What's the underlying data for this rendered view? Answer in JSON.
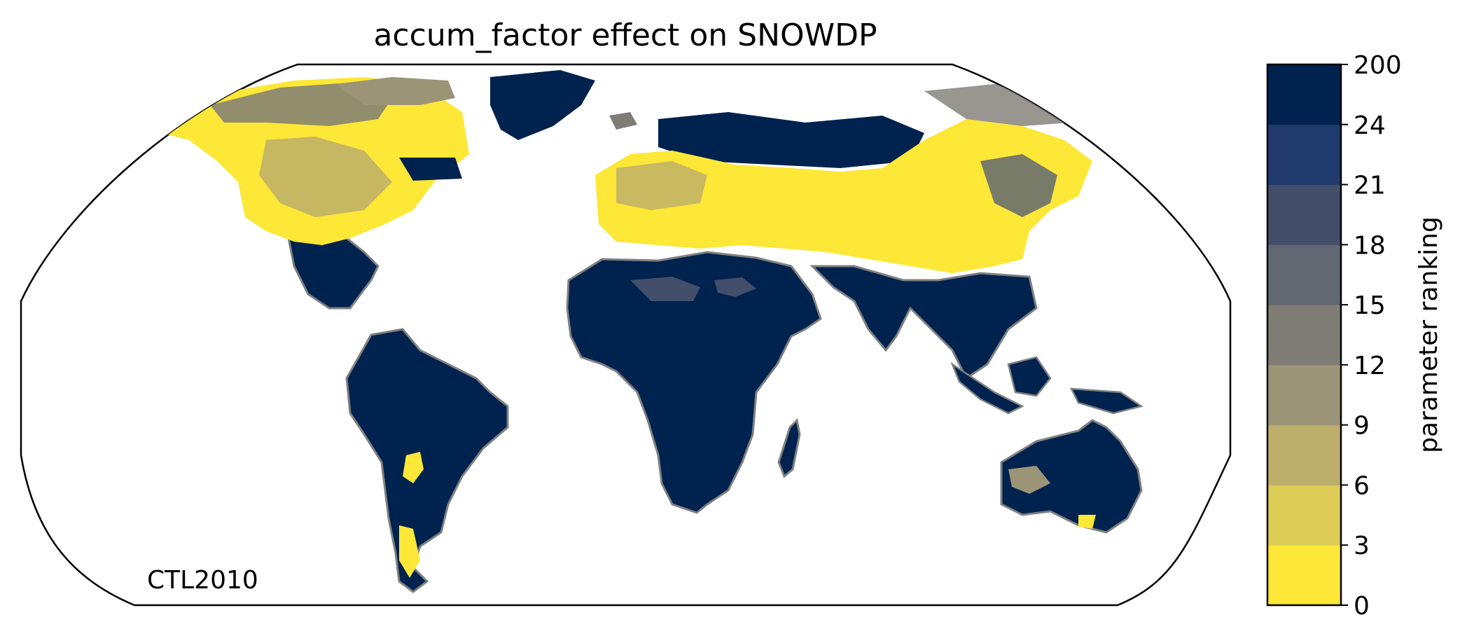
{
  "map": {
    "title": "accum_factor effect on SNOWDP",
    "annotation": "CTL2010",
    "projection": "Robinson",
    "coastline_color": "#808080"
  },
  "colorbar": {
    "label": "parameter ranking",
    "ticks": [
      "0",
      "3",
      "6",
      "9",
      "12",
      "15",
      "18",
      "21",
      "24",
      "200"
    ],
    "colors": [
      "#fde737",
      "#dccb55",
      "#bcae6b",
      "#9c9477",
      "#7f7c75",
      "#626772",
      "#434e6b",
      "#203a6e",
      "#00224e"
    ]
  },
  "legend_meaning": {
    "low_rank_color": "#fde737",
    "high_rank_color": "#00224e"
  }
}
